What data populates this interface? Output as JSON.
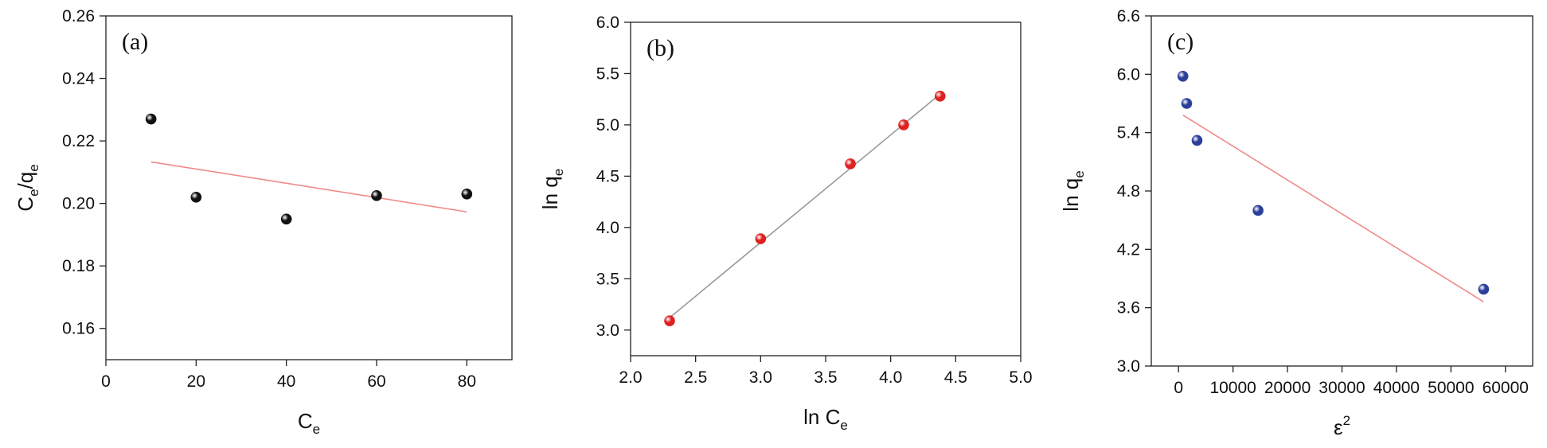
{
  "chart_data": [
    {
      "type": "scatter",
      "panel_label": "(a)",
      "xlabel": "C",
      "xlabel_sub": "e",
      "ylabel_parts": [
        "C",
        "e",
        "/q",
        "e"
      ],
      "xlim": [
        0,
        90
      ],
      "ylim": [
        0.15,
        0.26
      ],
      "xticks": [
        0,
        20,
        40,
        60,
        80
      ],
      "yticks": [
        0.16,
        0.18,
        0.2,
        0.22,
        0.24,
        0.26
      ],
      "ytick_labels": [
        "0.16",
        "0.18",
        "0.20",
        "0.22",
        "0.24",
        "0.26"
      ],
      "xtick_labels": [
        "0",
        "20",
        "40",
        "60",
        "80"
      ],
      "points": {
        "x": [
          10,
          20,
          40,
          60,
          80
        ],
        "y": [
          0.227,
          0.202,
          0.195,
          0.2025,
          0.203
        ]
      },
      "fit_line": {
        "x": [
          10,
          80
        ],
        "y": [
          0.2133,
          0.1973
        ]
      },
      "point_color": "#111111",
      "line_color": "#f08a8a"
    },
    {
      "type": "scatter",
      "panel_label": "(b)",
      "xlabel": "ln C",
      "xlabel_sub": "e",
      "ylabel_parts": [
        "ln q",
        "e"
      ],
      "xlim": [
        2.0,
        5.0
      ],
      "ylim": [
        2.75,
        6.0
      ],
      "xticks": [
        2.0,
        2.5,
        3.0,
        3.5,
        4.0,
        4.5,
        5.0
      ],
      "xtick_labels": [
        "2.0",
        "2.5",
        "3.0",
        "3.5",
        "4.0",
        "4.5",
        "5.0"
      ],
      "yticks": [
        3.0,
        3.5,
        4.0,
        4.5,
        5.0,
        5.5,
        6.0
      ],
      "ytick_labels": [
        "3.0",
        "3.5",
        "4.0",
        "4.5",
        "5.0",
        "5.5",
        "6.0"
      ],
      "points": {
        "x": [
          2.3,
          3.0,
          3.69,
          4.1,
          4.38
        ],
        "y": [
          3.09,
          3.89,
          4.62,
          5.0,
          5.28
        ]
      },
      "fit_line": {
        "x": [
          2.3,
          4.38
        ],
        "y": [
          3.12,
          5.3
        ]
      },
      "point_color": "#e02020",
      "line_color": "#999999"
    },
    {
      "type": "scatter",
      "panel_label": "(c)",
      "xlabel": "ε",
      "xlabel_sup": "2",
      "ylabel_parts": [
        "ln q",
        "e"
      ],
      "xlim": [
        -5000,
        65000
      ],
      "ylim": [
        3.0,
        6.6
      ],
      "xticks": [
        0,
        10000,
        20000,
        30000,
        40000,
        50000,
        60000
      ],
      "xtick_labels": [
        "0",
        "10000",
        "20000",
        "30000",
        "40000",
        "50000",
        "60000"
      ],
      "yticks": [
        3.0,
        3.6,
        4.2,
        4.8,
        5.4,
        6.0,
        6.6
      ],
      "ytick_labels": [
        "3.0",
        "3.6",
        "4.2",
        "4.8",
        "5.4",
        "6.0",
        "6.6"
      ],
      "points": {
        "x": [
          800,
          1500,
          3400,
          14600,
          56000
        ],
        "y": [
          5.98,
          5.7,
          5.32,
          4.6,
          3.79
        ]
      },
      "fit_line": {
        "x": [
          800,
          56000
        ],
        "y": [
          5.58,
          3.66
        ]
      },
      "point_color": "#2b3f9a",
      "line_color": "#f08a8a"
    }
  ]
}
